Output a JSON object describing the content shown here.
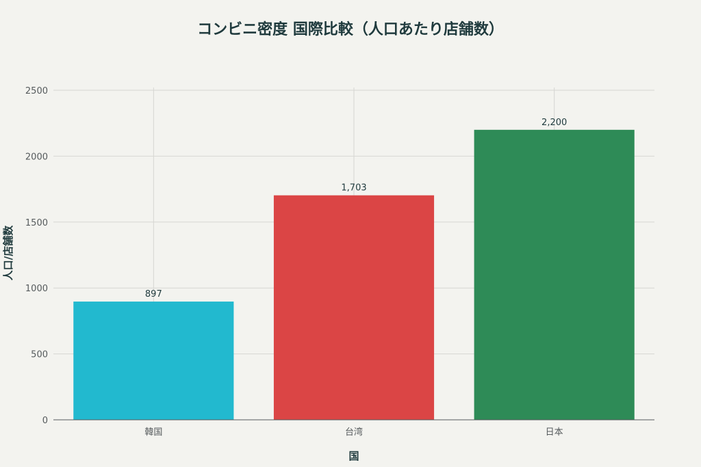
{
  "chart_data": {
    "type": "bar",
    "title": "コンビニ密度 国際比較（人口あたり店舗数）",
    "xlabel": "国",
    "ylabel": "人口/店舗数",
    "categories": [
      "韓国",
      "台湾",
      "日本"
    ],
    "values": [
      897,
      1703,
      2200
    ],
    "data_labels": [
      "897",
      "1,703",
      "2,200"
    ],
    "colors": [
      "#22b9cf",
      "#db4545",
      "#2e8b57"
    ],
    "ylim": [
      0,
      2500
    ],
    "yticks": [
      0,
      500,
      1000,
      1500,
      2000,
      2500
    ],
    "grid": true,
    "legend": "none"
  }
}
